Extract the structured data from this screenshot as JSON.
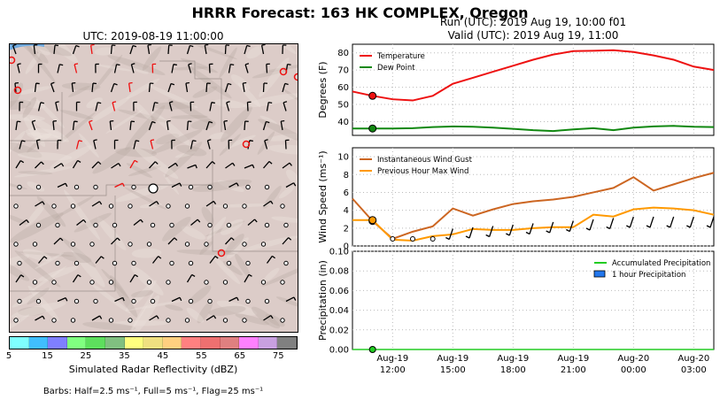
{
  "title": "HRRR Forecast: 163 HK COMPLEX, Oregon",
  "map": {
    "time_label": "UTC: 2019-08-19 11:00:00",
    "colorbar_label": "Simulated Radar Reflectivity (dBZ)",
    "colorbar_ticks": [
      "5",
      "15",
      "25",
      "35",
      "45",
      "55",
      "65",
      "75"
    ],
    "colorbar_colors": [
      "#7fffff",
      "#40bfff",
      "#7f7fff",
      "#80ff80",
      "#5ddf5d",
      "#80c080",
      "#ffff7f",
      "#f0e080",
      "#ffd080",
      "#ff8080",
      "#ee7070",
      "#e08080",
      "#ff80ff",
      "#c8a0e0",
      "#808080"
    ],
    "barbs_note": "Barbs: Half=2.5 ms⁻¹, Full=5 ms⁻¹, Flag=25 ms⁻¹"
  },
  "run_label": "Run (UTC): 2019 Aug 19, 10:00 f01",
  "valid_label": "Valid (UTC): 2019 Aug 19, 11:00",
  "chart_data": [
    {
      "type": "line",
      "ylabel": "Degrees (F)",
      "ylim": [
        32,
        85
      ],
      "yticks": [
        40,
        50,
        60,
        70,
        80
      ],
      "legend_position": "top-left",
      "x_hours": [
        0,
        1,
        2,
        3,
        4,
        5,
        6,
        7,
        8,
        9,
        10,
        11,
        12,
        13,
        14,
        15,
        16,
        17,
        18
      ],
      "series": [
        {
          "name": "Temperature",
          "color": "#ee1111",
          "values": [
            57.5,
            55,
            53,
            52.3,
            55,
            62,
            65.5,
            69,
            72.5,
            76,
            79,
            81,
            81.2,
            81.5,
            80.5,
            78.5,
            76,
            72,
            70
          ]
        },
        {
          "name": "Dew Point",
          "color": "#118811",
          "values": [
            36,
            36,
            36,
            36.2,
            36.8,
            37.2,
            37,
            36.5,
            35.8,
            35,
            34.5,
            35.5,
            36.2,
            35,
            36.5,
            37.2,
            37.5,
            37,
            36.8
          ]
        }
      ],
      "current_marker_hour": 1
    },
    {
      "type": "line",
      "ylabel": "Wind Speed (ms⁻¹)",
      "ylim": [
        0,
        11
      ],
      "yticks": [
        0,
        2,
        4,
        6,
        8,
        10
      ],
      "legend_position": "top-left",
      "x_hours": [
        0,
        1,
        2,
        3,
        4,
        5,
        6,
        7,
        8,
        9,
        10,
        11,
        12,
        13,
        14,
        15,
        16,
        17,
        18
      ],
      "series": [
        {
          "name": "Instantaneous Wind Gust",
          "color": "#cc6622",
          "values": [
            5.3,
            2.8,
            0.8,
            1.6,
            2.2,
            4.2,
            3.4,
            4.1,
            4.7,
            5.0,
            5.2,
            5.5,
            6.0,
            6.5,
            7.7,
            6.2,
            6.9,
            7.6,
            8.2
          ]
        },
        {
          "name": "Previous Hour Max Wind",
          "color": "#ff9900",
          "values": [
            2.9,
            2.9,
            0.7,
            0.6,
            1.1,
            1.3,
            1.9,
            1.8,
            1.8,
            2.0,
            2.1,
            2.1,
            3.5,
            3.3,
            4.1,
            4.3,
            4.2,
            4.0,
            3.5
          ]
        }
      ],
      "current_marker_hour": 1
    },
    {
      "type": "bar",
      "ylabel": "Precipitation (in)",
      "ylim": [
        0,
        0.1
      ],
      "yticks": [
        "0.00",
        "0.02",
        "0.04",
        "0.06",
        "0.08",
        "0.10"
      ],
      "legend_position": "top-right",
      "x_hours": [
        0,
        1,
        2,
        3,
        4,
        5,
        6,
        7,
        8,
        9,
        10,
        11,
        12,
        13,
        14,
        15,
        16,
        17,
        18
      ],
      "series": [
        {
          "name": "Accumulated Precipitation",
          "color": "#22cc22",
          "values": [
            0,
            0,
            0,
            0,
            0,
            0,
            0,
            0,
            0,
            0,
            0,
            0,
            0,
            0,
            0,
            0,
            0,
            0,
            0
          ]
        },
        {
          "name": "1 hour Precipitation",
          "color": "#2277ee",
          "values": [
            0,
            0,
            0,
            0,
            0,
            0,
            0,
            0,
            0,
            0,
            0,
            0,
            0,
            0,
            0,
            0,
            0,
            0,
            0
          ]
        }
      ],
      "xticks": [
        {
          "hour": 2,
          "line1": "Aug-19",
          "line2": "12:00"
        },
        {
          "hour": 5,
          "line1": "Aug-19",
          "line2": "15:00"
        },
        {
          "hour": 8,
          "line1": "Aug-19",
          "line2": "18:00"
        },
        {
          "hour": 11,
          "line1": "Aug-19",
          "line2": "21:00"
        },
        {
          "hour": 14,
          "line1": "Aug-20",
          "line2": "00:00"
        },
        {
          "hour": 17,
          "line1": "Aug-20",
          "line2": "03:00"
        }
      ]
    }
  ]
}
